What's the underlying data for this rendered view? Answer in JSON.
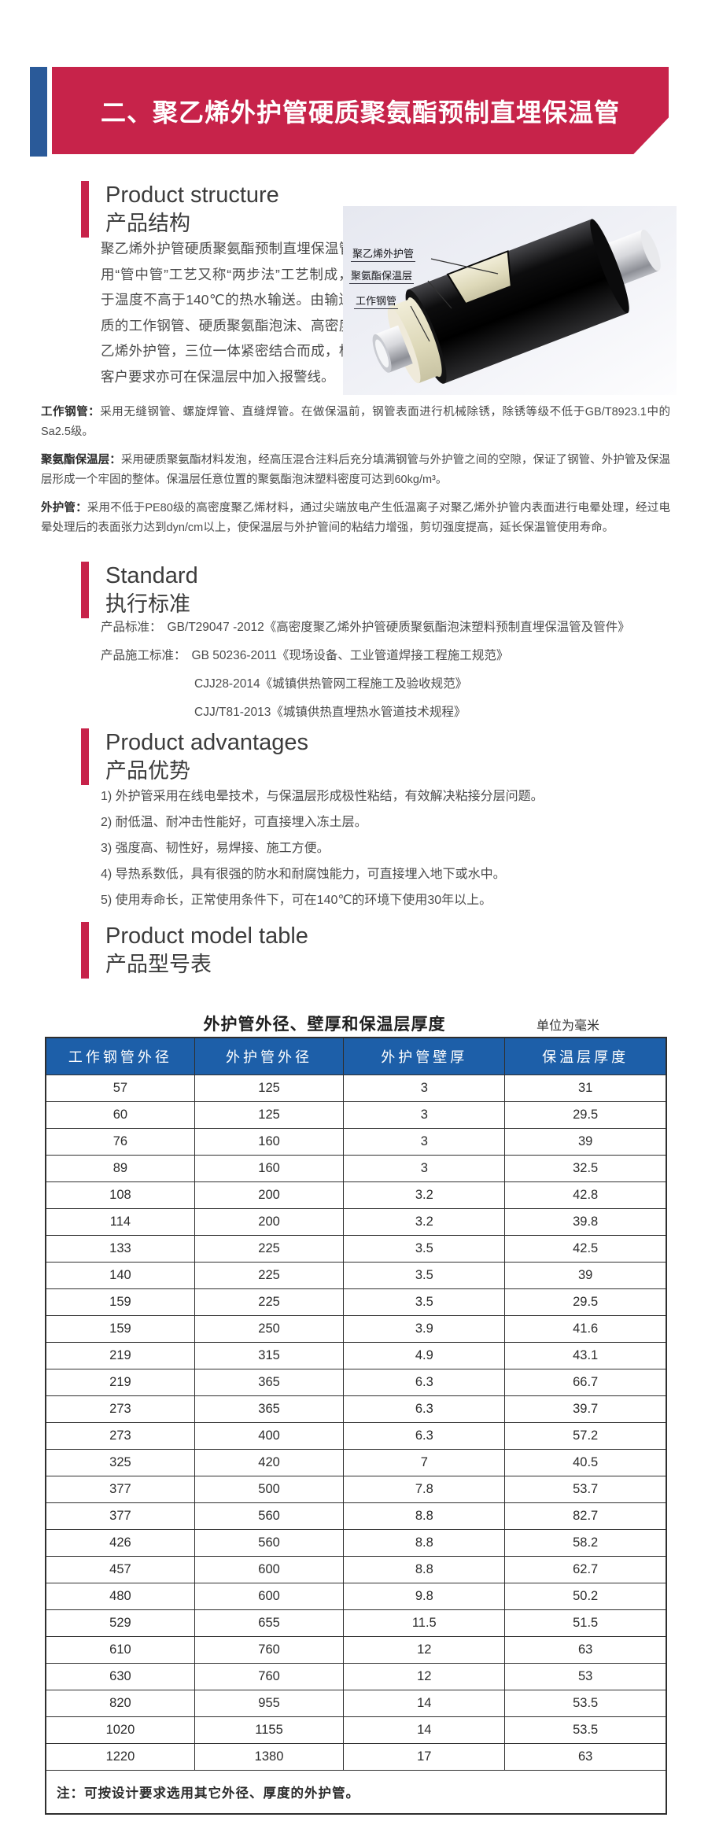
{
  "banner": {
    "title": "二、聚乙烯外护管硬质聚氨酯预制直埋保温管",
    "red": "#c7234a",
    "blue": "#2a5a99"
  },
  "sections": {
    "structure": {
      "title_en": "Product structure",
      "title_zh": "产品结构",
      "paragraph": "聚乙烯外护管硬质聚氨酯预制直埋保温管采用“管中管”工艺又称“两步法”工艺制成，用于温度不高于140℃的热水输送。由输送介质的工作钢管、硬质聚氨酯泡沫、高密度聚乙烯外护管，三位一体紧密结合而成，根据客户要求亦可在保温层中加入报警线。",
      "figure_labels": [
        "聚乙烯外护管",
        "聚氨酯保温层",
        "工作钢管"
      ],
      "definitions": [
        {
          "term": "工作钢管：",
          "text": "采用无缝钢管、螺旋焊管、直缝焊管。在做保温前，钢管表面进行机械除锈，除锈等级不低于GB/T8923.1中的Sa2.5级。"
        },
        {
          "term": "聚氨酯保温层：",
          "text": "采用硬质聚氨酯材料发泡，经高压混合注料后充分填满钢管与外护管之间的空隙，保证了钢管、外护管及保温层形成一个牢固的整体。保温层任意位置的聚氨酯泡沫塑料密度可达到60kg/m³。"
        },
        {
          "term": "外护管：",
          "text": "采用不低于PE80级的高密度聚乙烯材料，通过尖端放电产生低温离子对聚乙烯外护管内表面进行电晕处理，经过电晕处理后的表面张力达到dyn/cm以上，使保温层与外护管间的粘结力增强，剪切强度提高，延长保温管使用寿命。"
        }
      ]
    },
    "standard": {
      "title_en": "Standard",
      "title_zh": "执行标准",
      "lines": [
        {
          "label": "产品标准：",
          "text": "GB/T29047 -2012《高密度聚乙烯外护管硬质聚氨酯泡沫塑料预制直埋保温管及管件》"
        },
        {
          "label": "产品施工标准：",
          "text": "GB 50236-2011《现场设备、工业管道焊接工程施工规范》"
        },
        {
          "label": "",
          "text": "CJJ28-2014《城镇供热管网工程施工及验收规范》"
        },
        {
          "label": "",
          "text": "CJJ/T81-2013《城镇供热直埋热水管道技术规程》"
        }
      ]
    },
    "advantages": {
      "title_en": "Product advantages",
      "title_zh": "产品优势",
      "items": [
        "1) 外护管采用在线电晕技术，与保温层形成极性粘结，有效解决粘接分层问题。",
        "2) 耐低温、耐冲击性能好，可直接埋入冻土层。",
        "3) 强度高、韧性好，易焊接、施工方便。",
        "4) 导热系数低，具有很强的防水和耐腐蚀能力，可直接埋入地下或水中。",
        "5) 使用寿命长，正常使用条件下，可在140℃的环境下使用30年以上。"
      ]
    },
    "model_table": {
      "title_en": "Product model table",
      "title_zh": "产品型号表",
      "table_title": "外护管外径、壁厚和保温层厚度",
      "unit": "单位为毫米",
      "header_color": "#1d5fa9",
      "headers": [
        "工作钢管外径",
        "外护管外径",
        "外护管壁厚",
        "保温层厚度"
      ],
      "rows": [
        [
          "57",
          "125",
          "3",
          "31"
        ],
        [
          "60",
          "125",
          "3",
          "29.5"
        ],
        [
          "76",
          "160",
          "3",
          "39"
        ],
        [
          "89",
          "160",
          "3",
          "32.5"
        ],
        [
          "108",
          "200",
          "3.2",
          "42.8"
        ],
        [
          "114",
          "200",
          "3.2",
          "39.8"
        ],
        [
          "133",
          "225",
          "3.5",
          "42.5"
        ],
        [
          "140",
          "225",
          "3.5",
          "39"
        ],
        [
          "159",
          "225",
          "3.5",
          "29.5"
        ],
        [
          "159",
          "250",
          "3.9",
          "41.6"
        ],
        [
          "219",
          "315",
          "4.9",
          "43.1"
        ],
        [
          "219",
          "365",
          "6.3",
          "66.7"
        ],
        [
          "273",
          "365",
          "6.3",
          "39.7"
        ],
        [
          "273",
          "400",
          "6.3",
          "57.2"
        ],
        [
          "325",
          "420",
          "7",
          "40.5"
        ],
        [
          "377",
          "500",
          "7.8",
          "53.7"
        ],
        [
          "377",
          "560",
          "8.8",
          "82.7"
        ],
        [
          "426",
          "560",
          "8.8",
          "58.2"
        ],
        [
          "457",
          "600",
          "8.8",
          "62.7"
        ],
        [
          "480",
          "600",
          "9.8",
          "50.2"
        ],
        [
          "529",
          "655",
          "11.5",
          "51.5"
        ],
        [
          "610",
          "760",
          "12",
          "63"
        ],
        [
          "630",
          "760",
          "12",
          "53"
        ],
        [
          "820",
          "955",
          "14",
          "53.5"
        ],
        [
          "1020",
          "1155",
          "14",
          "53.5"
        ],
        [
          "1220",
          "1380",
          "17",
          "63"
        ]
      ],
      "note": "注：可按设计要求选用其它外径、厚度的外护管。"
    }
  }
}
